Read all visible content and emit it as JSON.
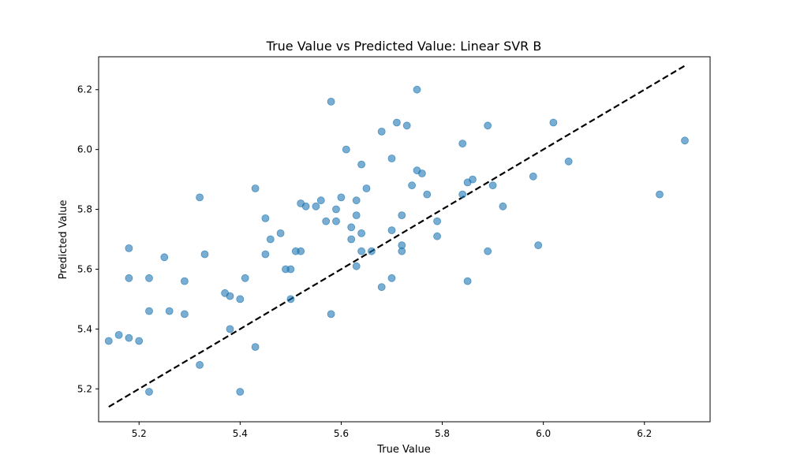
{
  "chart_data": {
    "type": "scatter",
    "title": "True Value vs Predicted Value: Linear SVR B",
    "xlabel": "True Value",
    "ylabel": "Predicted Value",
    "xlim": [
      5.12,
      6.33
    ],
    "ylim": [
      5.09,
      6.31
    ],
    "xticks": [
      "5.2",
      "5.4",
      "5.6",
      "5.8",
      "6.0",
      "6.2"
    ],
    "yticks": [
      "5.2",
      "5.4",
      "5.6",
      "5.8",
      "6.0",
      "6.2"
    ],
    "grid": false,
    "legend": "none",
    "point_color": "#1f77b4",
    "line_color": "#000000",
    "reference_line": {
      "style": "dashed",
      "x": [
        5.14,
        6.28
      ],
      "y": [
        5.14,
        6.28
      ]
    },
    "points": [
      [
        5.14,
        5.36
      ],
      [
        5.16,
        5.38
      ],
      [
        5.18,
        5.37
      ],
      [
        5.2,
        5.36
      ],
      [
        5.18,
        5.57
      ],
      [
        5.18,
        5.67
      ],
      [
        5.22,
        5.46
      ],
      [
        5.22,
        5.57
      ],
      [
        5.22,
        5.19
      ],
      [
        5.25,
        5.64
      ],
      [
        5.26,
        5.46
      ],
      [
        5.29,
        5.56
      ],
      [
        5.29,
        5.45
      ],
      [
        5.32,
        5.84
      ],
      [
        5.33,
        5.65
      ],
      [
        5.32,
        5.28
      ],
      [
        5.37,
        5.52
      ],
      [
        5.38,
        5.51
      ],
      [
        5.38,
        5.4
      ],
      [
        5.4,
        5.5
      ],
      [
        5.41,
        5.57
      ],
      [
        5.4,
        5.19
      ],
      [
        5.43,
        5.87
      ],
      [
        5.43,
        5.34
      ],
      [
        5.45,
        5.77
      ],
      [
        5.45,
        5.65
      ],
      [
        5.46,
        5.7
      ],
      [
        5.48,
        5.72
      ],
      [
        5.49,
        5.6
      ],
      [
        5.5,
        5.6
      ],
      [
        5.5,
        5.5
      ],
      [
        5.51,
        5.66
      ],
      [
        5.52,
        5.66
      ],
      [
        5.52,
        5.82
      ],
      [
        5.53,
        5.81
      ],
      [
        5.55,
        5.81
      ],
      [
        5.56,
        5.83
      ],
      [
        5.57,
        5.76
      ],
      [
        5.58,
        6.16
      ],
      [
        5.58,
        5.45
      ],
      [
        5.59,
        5.76
      ],
      [
        5.59,
        5.8
      ],
      [
        5.6,
        5.84
      ],
      [
        5.61,
        6.0
      ],
      [
        5.62,
        5.74
      ],
      [
        5.62,
        5.7
      ],
      [
        5.63,
        5.83
      ],
      [
        5.63,
        5.78
      ],
      [
        5.63,
        5.61
      ],
      [
        5.64,
        5.95
      ],
      [
        5.64,
        5.72
      ],
      [
        5.64,
        5.66
      ],
      [
        5.65,
        5.87
      ],
      [
        5.66,
        5.66
      ],
      [
        5.68,
        6.06
      ],
      [
        5.68,
        5.54
      ],
      [
        5.7,
        5.97
      ],
      [
        5.7,
        5.73
      ],
      [
        5.7,
        5.57
      ],
      [
        5.71,
        6.09
      ],
      [
        5.72,
        5.78
      ],
      [
        5.72,
        5.68
      ],
      [
        5.72,
        5.66
      ],
      [
        5.73,
        6.08
      ],
      [
        5.74,
        5.88
      ],
      [
        5.75,
        6.2
      ],
      [
        5.75,
        5.93
      ],
      [
        5.76,
        5.92
      ],
      [
        5.77,
        5.85
      ],
      [
        5.79,
        5.76
      ],
      [
        5.79,
        5.71
      ],
      [
        5.84,
        6.02
      ],
      [
        5.84,
        5.85
      ],
      [
        5.85,
        5.89
      ],
      [
        5.85,
        5.56
      ],
      [
        5.86,
        5.9
      ],
      [
        5.89,
        6.08
      ],
      [
        5.89,
        5.66
      ],
      [
        5.9,
        5.88
      ],
      [
        5.92,
        5.81
      ],
      [
        5.98,
        5.91
      ],
      [
        5.99,
        5.68
      ],
      [
        6.02,
        6.09
      ],
      [
        6.05,
        5.96
      ],
      [
        6.23,
        5.85
      ],
      [
        6.28,
        6.03
      ]
    ]
  }
}
